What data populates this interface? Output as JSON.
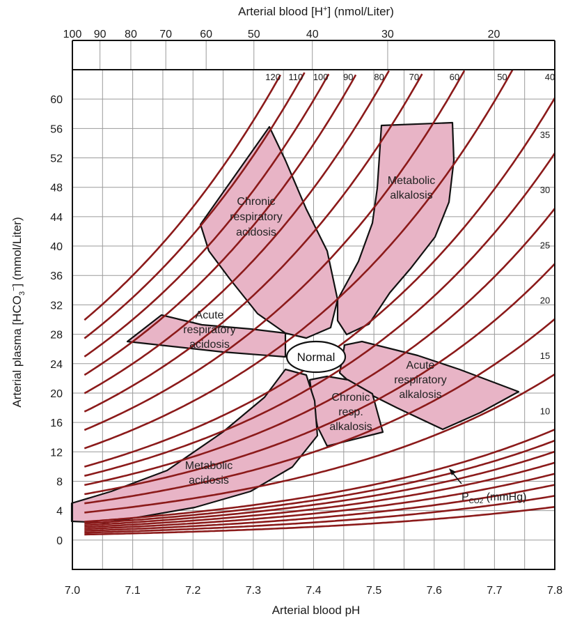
{
  "chart_data": {
    "type": "line",
    "title": "",
    "xlabel": "Arterial blood pH",
    "ylabel": "Arterial plasma [HCO3⁻] (mmol/Liter)",
    "x2label": "Arterial blood [H⁺] (nmol/Liter)",
    "xlim": [
      7.0,
      7.8
    ],
    "ylim": [
      -4,
      64
    ],
    "xticks": [
      "7.0",
      "7.1",
      "7.2",
      "7.3",
      "7.4",
      "7.5",
      "7.6",
      "7.7",
      "7.8"
    ],
    "yticks": [
      "0",
      "4",
      "8",
      "12",
      "16",
      "20",
      "24",
      "28",
      "32",
      "36",
      "40",
      "44",
      "48",
      "52",
      "56",
      "60"
    ],
    "x2ticks": [
      "100",
      "90",
      "80",
      "70",
      "60",
      "50",
      "40",
      "30",
      "20"
    ],
    "grid": true,
    "pco2_label": "PCO2 (mmHg)",
    "pco2_series_labels": [
      "120",
      "110",
      "100",
      "90",
      "80",
      "70",
      "60",
      "50",
      "40",
      "35",
      "30",
      "25",
      "20",
      "15",
      "10"
    ],
    "pco2_values": [
      120,
      110,
      100,
      90,
      80,
      70,
      60,
      50,
      40,
      35,
      30,
      25,
      20,
      15,
      10,
      9,
      8,
      7,
      6,
      5,
      4,
      3
    ],
    "regions": [
      {
        "name": "Normal",
        "center": [
          7.4,
          24
        ]
      },
      {
        "name": "Chronic respiratory acidosis",
        "lines": [
          "Chronic",
          "respiratory",
          "acidosis"
        ]
      },
      {
        "name": "Acute respiratory acidosis",
        "lines": [
          "Acute",
          "respiratory",
          "acidosis"
        ]
      },
      {
        "name": "Metabolic alkalosis",
        "lines": [
          "Metabolic",
          "alkalosis"
        ]
      },
      {
        "name": "Acute respiratory alkalosis",
        "lines": [
          "Acute",
          "respiratory",
          "alkalosis"
        ]
      },
      {
        "name": "Chronic resp. alkalosis",
        "lines": [
          "Chronic",
          "resp.",
          "alkalosis"
        ]
      },
      {
        "name": "Metabolic acidosis",
        "lines": [
          "Metabolic",
          "acidosis"
        ]
      }
    ],
    "colors": {
      "curve": "#8b1a1a",
      "region_fill": "#e8b4c6",
      "grid": "#9a9a9a",
      "frame": "#111111"
    }
  }
}
